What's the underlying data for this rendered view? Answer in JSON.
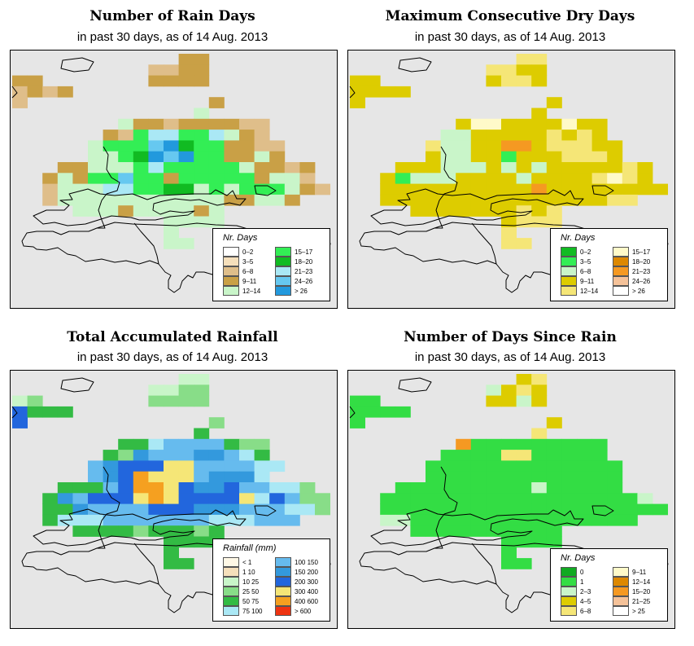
{
  "colors": {
    "ocean": "#e6e6e6",
    "coast": "#000000"
  },
  "panels": [
    {
      "id": "rain-days",
      "title": "Number of Rain Days",
      "subtitle": "in past 30 days, as of  14 Aug. 2013",
      "legend_title": "Nr. Days",
      "legend": [
        {
          "label": "0–2",
          "color": "#ffffff"
        },
        {
          "label": "3–5",
          "color": "#f5dfbb"
        },
        {
          "label": "6–8",
          "color": "#dfbe8a"
        },
        {
          "label": "9–11",
          "color": "#c9a046"
        },
        {
          "label": "12–14",
          "color": "#c9f5c9"
        },
        {
          "label": "15–17",
          "color": "#33ee55"
        },
        {
          "label": "18–20",
          "color": "#11bb22"
        },
        {
          "label": "21–23",
          "color": "#aae8f5"
        },
        {
          "label": "24–26",
          "color": "#66c8f0"
        },
        {
          "label": "> 26",
          "color": "#2299dd"
        }
      ],
      "grid": [
        "...........33........",
        ".........2233........",
        "33.......3333........",
        "2323.................",
        "2............3.......",
        "............4........",
        ".......4332333322....",
        "......32577557432....",
        ".....4555896553322...",
        ".....4456989553343...",
        "...33444575555543323.",
        "..343558553555553442.",
        "..2444775566454555432",
        "..24444444444433443..",
        "....4443444434.......",
        "..........4444.......",
        "..........4..........",
        "..........44........."
      ]
    },
    {
      "id": "dry-days",
      "title": "Maximum Consecutive Dry Days",
      "subtitle": "in past 30 days, as of  14 Aug. 2013",
      "legend_title": "Nr. Days",
      "legend": [
        {
          "label": "0–2",
          "color": "#11bb22"
        },
        {
          "label": "3–5",
          "color": "#33ee55"
        },
        {
          "label": "6–8",
          "color": "#c9f5c9"
        },
        {
          "label": "9–11",
          "color": "#ddcc00"
        },
        {
          "label": "12–14",
          "color": "#f5e677"
        },
        {
          "label": "15–17",
          "color": "#fffac9"
        },
        {
          "label": "18–20",
          "color": "#dd8800"
        },
        {
          "label": "21–23",
          "color": "#f59922"
        },
        {
          "label": "24–26",
          "color": "#f5c299"
        },
        {
          "label": "> 26",
          "color": "#ffffff"
        }
      ],
      "grid": [
        "...........44........",
        ".........4433........",
        "33.......3443........",
        "3333.................",
        "3............3.......",
        "............3........",
        ".......3553333533....",
        "......22333334343....",
        ".....4223377344433...",
        ".....3223313334443...",
        "...33322232323333343.",
        "..312223333233334543.",
        "..3333333333733333333",
        "..33333333333333344..",
        "....3333333434.......",
        "..........3444.......",
        "..........4..........",
        "..........44........."
      ]
    },
    {
      "id": "rainfall",
      "title": "Total Accumulated Rainfall",
      "subtitle": "in past 30 days, as of  14 Aug. 2013",
      "legend_title": "Rainfall (mm)",
      "legend": [
        {
          "label": "< 1",
          "color": "#fff8e6"
        },
        {
          "label": "1   10",
          "color": "#f5dfbb"
        },
        {
          "label": "10   25",
          "color": "#c9f5c9"
        },
        {
          "label": "25   50",
          "color": "#88dd88"
        },
        {
          "label": "50   75",
          "color": "#33bb44"
        },
        {
          "label": "75   100",
          "color": "#aae8f5"
        },
        {
          "label": "100  150",
          "color": "#66bbee"
        },
        {
          "label": "150  200",
          "color": "#3399dd"
        },
        {
          "label": "200  300",
          "color": "#2266dd"
        },
        {
          "label": "300  400",
          "color": "#f5e677"
        },
        {
          "label": "400  600",
          "color": "#f5a020"
        },
        {
          "label": "> 600",
          "color": "#ee3311"
        }
      ],
      "grid": [
        "...........22........",
        ".........2233........",
        "23.......3333........",
        "8444.................",
        "8............3.......",
        "............4........",
        ".......4456666433....",
        "......43766677654....",
        ".....6788899666655...",
        ".....678A99967775....",
        "...44468AA9877866553.",
        "..4768889A98888958633",
        "..4476666888777666553",
        "..45556666666555666..",
        "....4444344434.......",
        "..........4444.......",
        "..........4..........",
        "..........44........."
      ]
    },
    {
      "id": "since-rain",
      "title": "Number of Days Since Rain",
      "subtitle": "in past 30 days, as of  14 Aug. 2013",
      "legend_title": "Nr. Days",
      "legend": [
        {
          "label": "0",
          "color": "#11aa22"
        },
        {
          "label": "1",
          "color": "#33dd44"
        },
        {
          "label": "2–3",
          "color": "#c9f5c9"
        },
        {
          "label": "4–5",
          "color": "#ddcc00"
        },
        {
          "label": "6–8",
          "color": "#f5e677"
        },
        {
          "label": "9–11",
          "color": "#fffac9"
        },
        {
          "label": "12–14",
          "color": "#dd8800"
        },
        {
          "label": "15–20",
          "color": "#f59922"
        },
        {
          "label": "21–25",
          "color": "#f5c299"
        },
        {
          "label": "> 25",
          "color": "#ffffff"
        }
      ],
      "grid": [
        "...........34........",
        ".........2343........",
        "11.......3323........",
        "1111.................",
        "1............3.......",
        "............4........",
        ".......7111111111....",
        "......11114411111....",
        ".....1111111111111...",
        ".....1111111111111...",
        "...111111111211111...",
        "..111111111111111112.",
        "..1111111111111111111",
        "..22111111111111111..",
        "....1111111111.......",
        "..........1111.......",
        "..........1..........",
        "..........11........."
      ]
    }
  ]
}
